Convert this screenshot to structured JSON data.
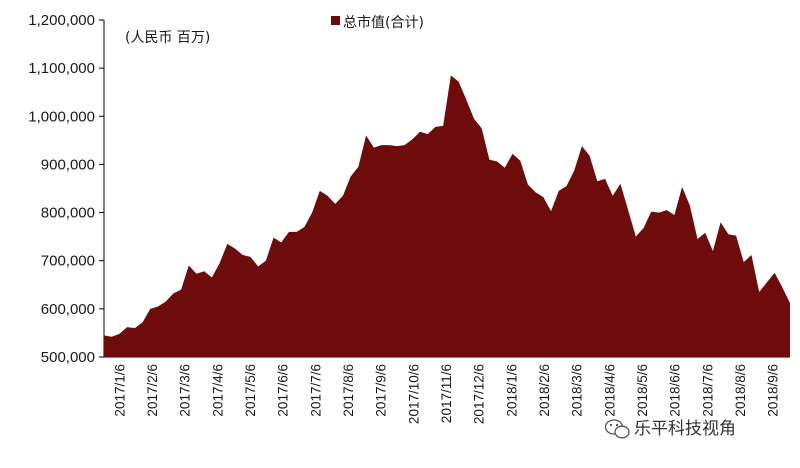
{
  "chart_data": {
    "type": "area",
    "title": "",
    "unit_label": "(人民币 百万)",
    "xlabel": "",
    "ylabel": "",
    "ylim": [
      500000,
      1200000
    ],
    "yticks": [
      "500,000",
      "600,000",
      "700,000",
      "800,000",
      "900,000",
      "1,000,000",
      "1,100,000",
      "1,200,000"
    ],
    "ytick_values": [
      500000,
      600000,
      700000,
      800000,
      900000,
      1000000,
      1100000,
      1200000
    ],
    "xticks": [
      "2017/1/6",
      "2017/2/6",
      "2017/3/6",
      "2017/4/6",
      "2017/5/6",
      "2017/6/6",
      "2017/7/6",
      "2017/8/6",
      "2017/9/6",
      "2017/10/6",
      "2017/11/6",
      "2017/12/6",
      "2018/1/6",
      "2018/2/6",
      "2018/3/6",
      "2018/4/6",
      "2018/5/6",
      "2018/6/6",
      "2018/7/6",
      "2018/8/6",
      "2018/9/6"
    ],
    "grid": false,
    "legend": "top-center",
    "color": "#6e0b0b",
    "series": [
      {
        "name": "总市值(合计)",
        "values": [
          545000,
          542000,
          548000,
          562000,
          560000,
          572000,
          600000,
          605000,
          615000,
          632000,
          640000,
          690000,
          673000,
          678000,
          665000,
          695000,
          735000,
          725000,
          712000,
          708000,
          688000,
          700000,
          748000,
          738000,
          760000,
          760000,
          770000,
          800000,
          845000,
          835000,
          818000,
          835000,
          875000,
          895000,
          960000,
          935000,
          940000,
          940000,
          938000,
          940000,
          952000,
          968000,
          963000,
          978000,
          980000,
          1085000,
          1072000,
          1035000,
          995000,
          975000,
          910000,
          906000,
          893000,
          922000,
          908000,
          858000,
          842000,
          832000,
          803000,
          845000,
          855000,
          887000,
          938000,
          918000,
          865000,
          870000,
          835000,
          860000,
          805000,
          750000,
          768000,
          802000,
          800000,
          805000,
          795000,
          853000,
          815000,
          745000,
          758000,
          720000,
          780000,
          755000,
          752000,
          697000,
          712000,
          635000,
          655000,
          675000,
          645000,
          612000
        ]
      }
    ]
  },
  "watermark": {
    "text": "乐平科技视角",
    "icon": "wechat-icon"
  }
}
